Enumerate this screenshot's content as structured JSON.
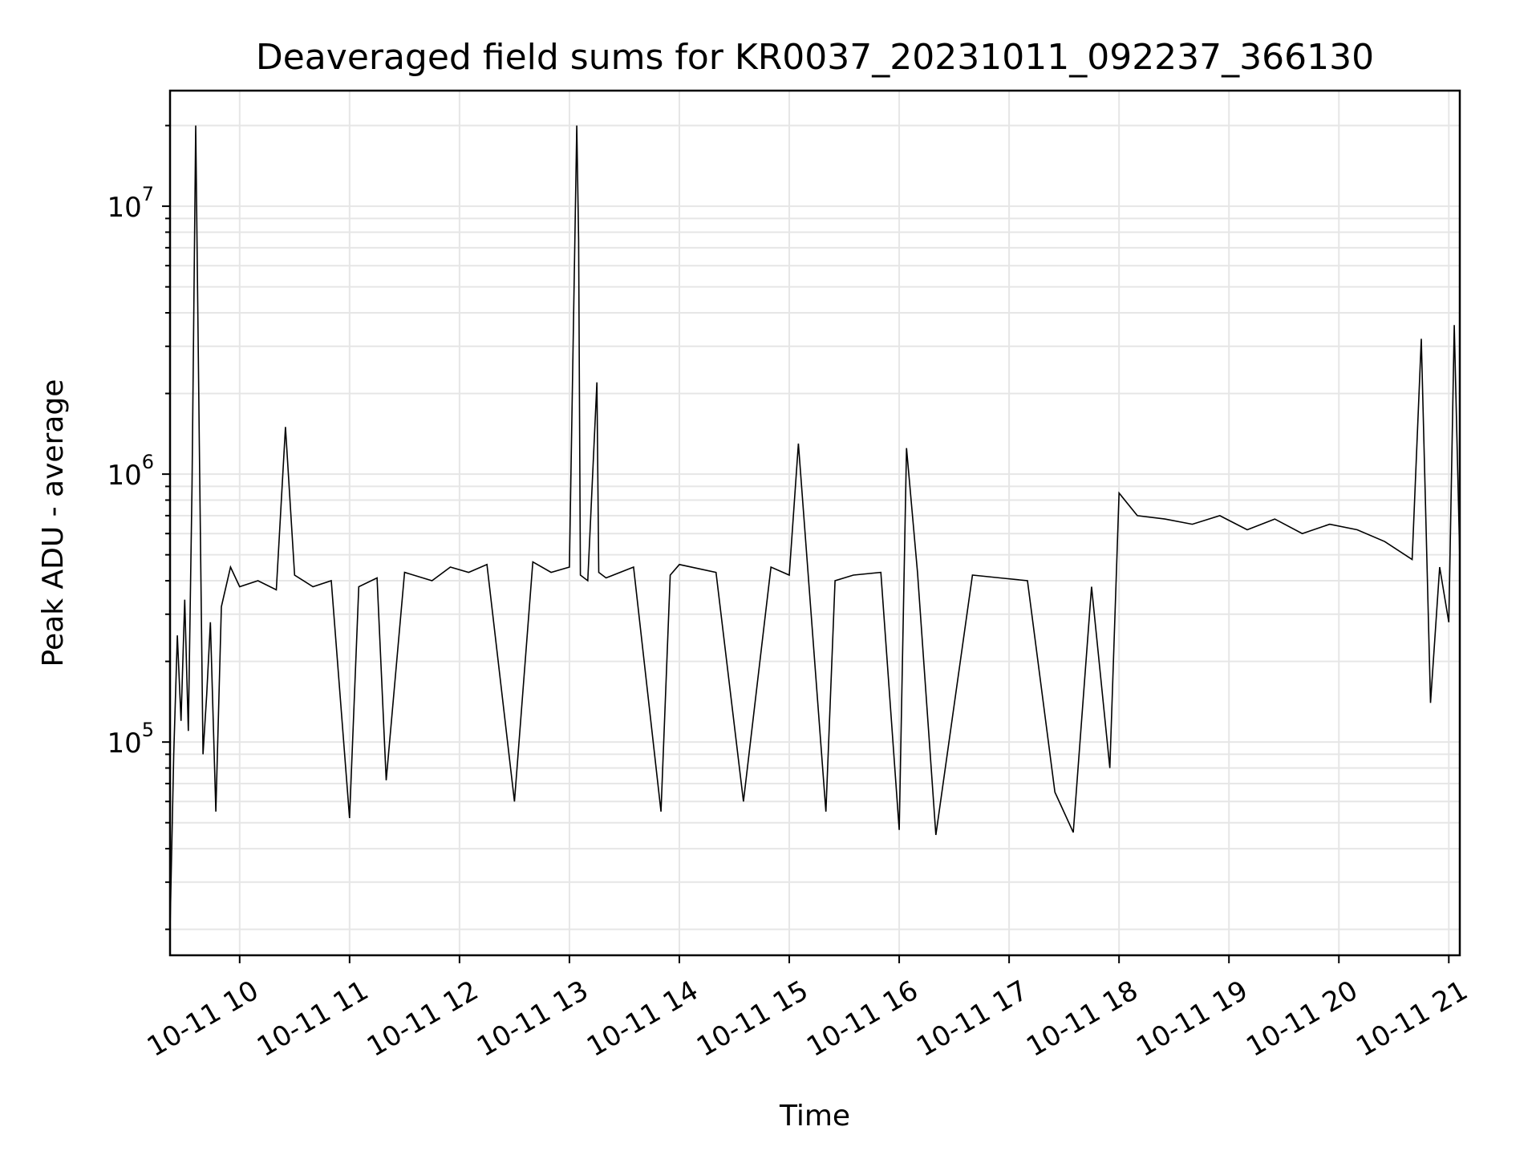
{
  "chart_data": {
    "type": "line",
    "title": "Deaveraged field sums for KR0037_20231011_092237_366130",
    "xlabel": "Time",
    "ylabel": "Peak ADU - average",
    "y_scale": "log",
    "ylim": [
      16000,
      27000000
    ],
    "xlim": [
      "2023-10-11 09:22",
      "2023-10-11 21:06"
    ],
    "grid": true,
    "line_color": "#000000",
    "grid_color": "#e6e6e6",
    "x_ticks": [
      {
        "t": "2023-10-11 10:00",
        "label": "10-11 10"
      },
      {
        "t": "2023-10-11 11:00",
        "label": "10-11 11"
      },
      {
        "t": "2023-10-11 12:00",
        "label": "10-11 12"
      },
      {
        "t": "2023-10-11 13:00",
        "label": "10-11 13"
      },
      {
        "t": "2023-10-11 14:00",
        "label": "10-11 14"
      },
      {
        "t": "2023-10-11 15:00",
        "label": "10-11 15"
      },
      {
        "t": "2023-10-11 16:00",
        "label": "10-11 16"
      },
      {
        "t": "2023-10-11 17:00",
        "label": "10-11 17"
      },
      {
        "t": "2023-10-11 18:00",
        "label": "10-11 18"
      },
      {
        "t": "2023-10-11 19:00",
        "label": "10-11 19"
      },
      {
        "t": "2023-10-11 20:00",
        "label": "10-11 20"
      },
      {
        "t": "2023-10-11 21:00",
        "label": "10-11 21"
      }
    ],
    "y_ticks": [
      {
        "value": 100000,
        "base": "10",
        "exp": "5"
      },
      {
        "value": 1000000,
        "base": "10",
        "exp": "6"
      },
      {
        "value": 10000000,
        "base": "10",
        "exp": "7"
      }
    ],
    "series": [
      {
        "x": [
          "2023-10-11 09:22",
          "2023-10-11 09:24",
          "2023-10-11 09:26",
          "2023-10-11 09:28",
          "2023-10-11 09:30",
          "2023-10-11 09:32",
          "2023-10-11 09:34",
          "2023-10-11 09:36",
          "2023-10-11 09:38",
          "2023-10-11 09:40",
          "2023-10-11 09:42",
          "2023-10-11 09:44",
          "2023-10-11 09:47",
          "2023-10-11 09:50",
          "2023-10-11 09:55",
          "2023-10-11 10:00",
          "2023-10-11 10:10",
          "2023-10-11 10:20",
          "2023-10-11 10:25",
          "2023-10-11 10:30",
          "2023-10-11 10:40",
          "2023-10-11 10:50",
          "2023-10-11 11:00",
          "2023-10-11 11:05",
          "2023-10-11 11:15",
          "2023-10-11 11:20",
          "2023-10-11 11:30",
          "2023-10-11 11:45",
          "2023-10-11 11:55",
          "2023-10-11 12:05",
          "2023-10-11 12:15",
          "2023-10-11 12:30",
          "2023-10-11 12:40",
          "2023-10-11 12:50",
          "2023-10-11 13:00",
          "2023-10-11 13:04",
          "2023-10-11 13:05",
          "2023-10-11 13:06",
          "2023-10-11 13:10",
          "2023-10-11 13:15",
          "2023-10-11 13:16",
          "2023-10-11 13:20",
          "2023-10-11 13:35",
          "2023-10-11 13:50",
          "2023-10-11 13:55",
          "2023-10-11 14:00",
          "2023-10-11 14:20",
          "2023-10-11 14:35",
          "2023-10-11 14:50",
          "2023-10-11 15:00",
          "2023-10-11 15:05",
          "2023-10-11 15:20",
          "2023-10-11 15:25",
          "2023-10-11 15:35",
          "2023-10-11 15:50",
          "2023-10-11 16:00",
          "2023-10-11 16:04",
          "2023-10-11 16:10",
          "2023-10-11 16:20",
          "2023-10-11 16:40",
          "2023-10-11 16:55",
          "2023-10-11 17:10",
          "2023-10-11 17:25",
          "2023-10-11 17:35",
          "2023-10-11 17:45",
          "2023-10-11 17:55",
          "2023-10-11 18:00",
          "2023-10-11 18:10",
          "2023-10-11 18:25",
          "2023-10-11 18:40",
          "2023-10-11 18:55",
          "2023-10-11 19:10",
          "2023-10-11 19:25",
          "2023-10-11 19:40",
          "2023-10-11 19:55",
          "2023-10-11 20:10",
          "2023-10-11 20:25",
          "2023-10-11 20:40",
          "2023-10-11 20:45",
          "2023-10-11 20:50",
          "2023-10-11 20:55",
          "2023-10-11 21:00",
          "2023-10-11 21:03",
          "2023-10-11 21:06"
        ],
        "y": [
          20000,
          90000,
          250000,
          120000,
          340000,
          110000,
          900000,
          20000000,
          1300000,
          90000,
          150000,
          280000,
          55000,
          320000,
          450000,
          380000,
          400000,
          370000,
          1500000,
          420000,
          380000,
          400000,
          52000,
          380000,
          410000,
          72000,
          430000,
          400000,
          450000,
          430000,
          460000,
          60000,
          470000,
          430000,
          450000,
          20000000,
          7500000,
          420000,
          400000,
          2200000,
          430000,
          410000,
          450000,
          55000,
          420000,
          460000,
          430000,
          60000,
          450000,
          420000,
          1300000,
          55000,
          400000,
          420000,
          430000,
          47000,
          1250000,
          430000,
          45000,
          420000,
          410000,
          400000,
          65000,
          46000,
          380000,
          80000,
          850000,
          700000,
          680000,
          650000,
          700000,
          620000,
          680000,
          600000,
          650000,
          620000,
          560000,
          480000,
          3200000,
          140000,
          450000,
          280000,
          3600000,
          480000
        ]
      }
    ]
  }
}
